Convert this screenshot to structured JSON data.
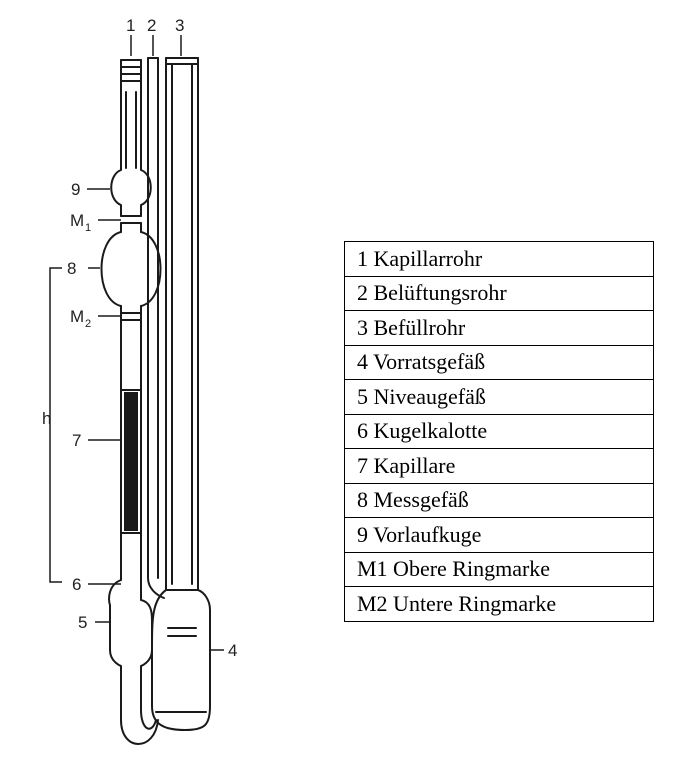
{
  "top_labels": [
    "1",
    "2",
    "3"
  ],
  "side_labels": {
    "n9": "9",
    "m1_main": "M",
    "m1_sub": "1",
    "n8": "8",
    "m2_main": "M",
    "m2_sub": "2",
    "h": "h",
    "n7": "7",
    "n6": "6",
    "n5": "5",
    "n4": "4"
  },
  "legend": [
    "1 Kapillarrohr",
    "2 Belüftungsrohr",
    "3 Befüllrohr",
    "4 Vorratsgefäß",
    "5 Niveaugefäß",
    "6 Kugelkalotte",
    "7 Kapillare",
    "8 Messgefäß",
    "9 Vorlaufkuge",
    "M1 Obere Ringmarke",
    "M2 Untere Ringmarke"
  ]
}
